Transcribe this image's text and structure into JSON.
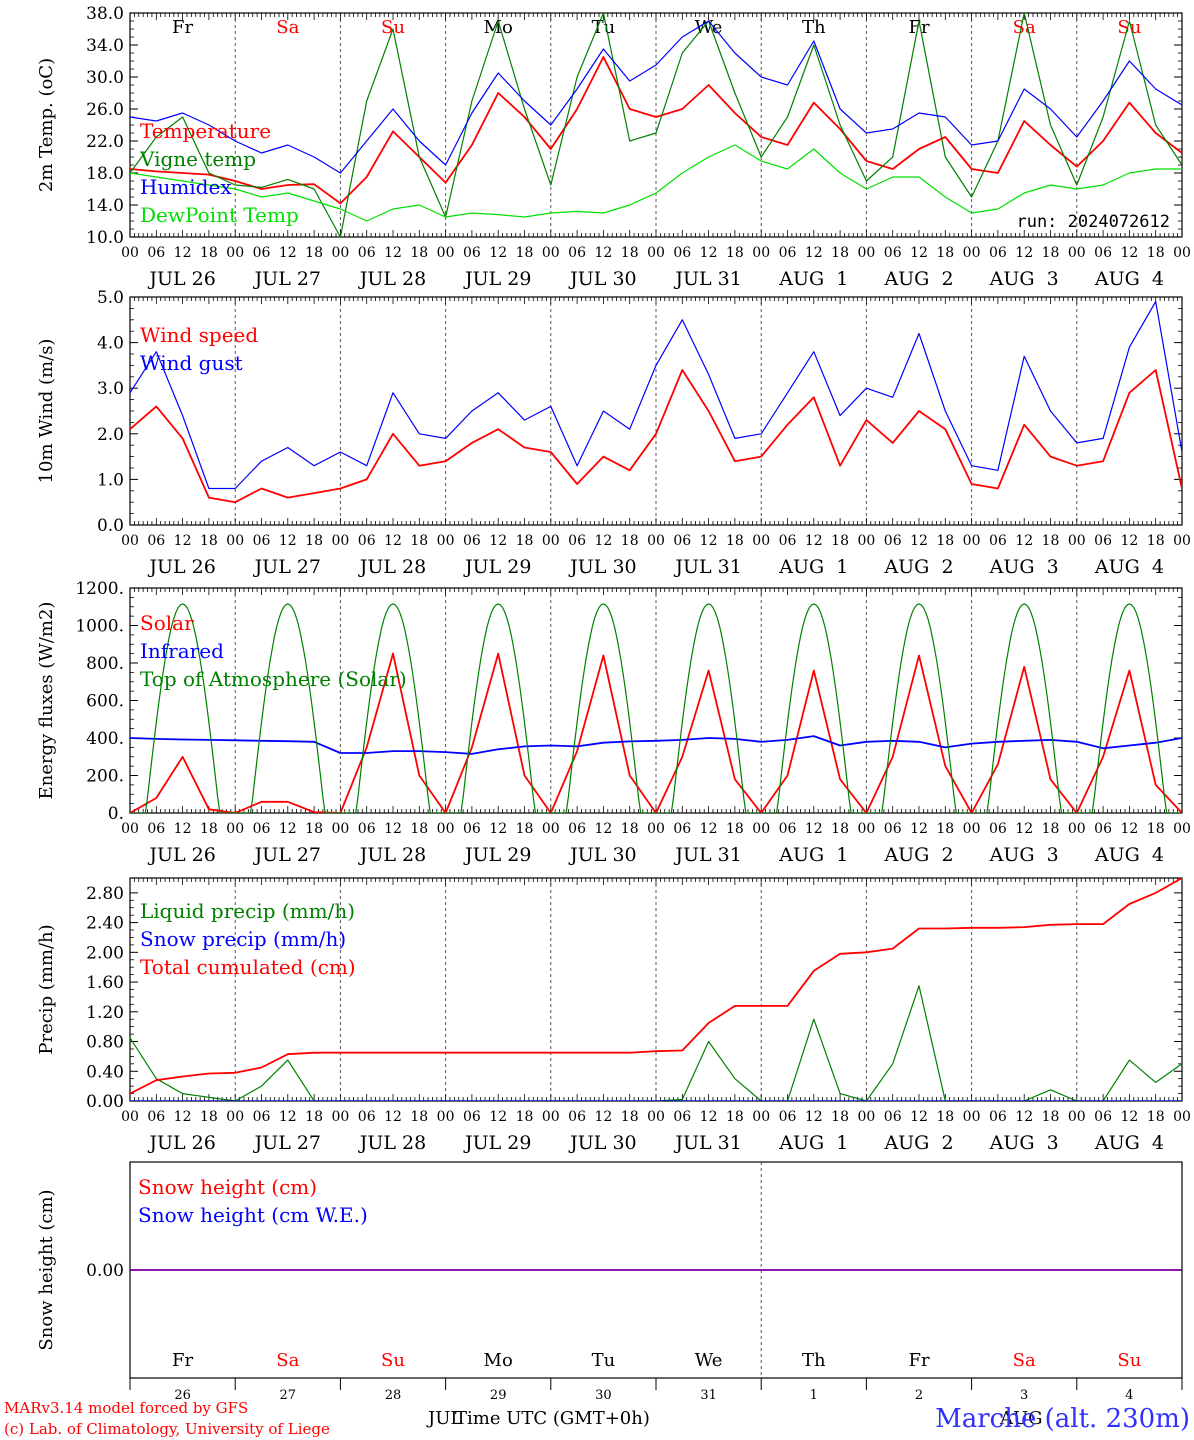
{
  "colors": {
    "red": "#ff0000",
    "green": "#008000",
    "blue": "#0000ff",
    "lime": "#00e000",
    "purple": "#8000a0",
    "axis": "#000000",
    "grid": "#555555"
  },
  "days": [
    {
      "dow": "Fr",
      "weekend": false,
      "month_label": "JUL 26",
      "day_num": "26"
    },
    {
      "dow": "Sa",
      "weekend": true,
      "month_label": "JUL 27",
      "day_num": "27"
    },
    {
      "dow": "Su",
      "weekend": true,
      "month_label": "JUL 28",
      "day_num": "28"
    },
    {
      "dow": "Mo",
      "weekend": false,
      "month_label": "JUL 29",
      "day_num": "29"
    },
    {
      "dow": "Tu",
      "weekend": false,
      "month_label": "JUL 30",
      "day_num": "30"
    },
    {
      "dow": "We",
      "weekend": false,
      "month_label": "JUL 31",
      "day_num": "31"
    },
    {
      "dow": "Th",
      "weekend": false,
      "month_label": "AUG  1",
      "day_num": "1"
    },
    {
      "dow": "Fr",
      "weekend": false,
      "month_label": "AUG  2",
      "day_num": "2"
    },
    {
      "dow": "Sa",
      "weekend": true,
      "month_label": "AUG  3",
      "day_num": "3"
    },
    {
      "dow": "Su",
      "weekend": true,
      "month_label": "AUG  4",
      "day_num": "4"
    }
  ],
  "hour_ticks": [
    "00",
    "06",
    "12",
    "18"
  ],
  "hour_tick_end": "00",
  "run_label": "run: 2024072612",
  "footer": {
    "credit_line1": "MARv3.14 model forced by GFS",
    "credit_line2": "(c) Lab. of Climatology, University of Liege",
    "month_left": "JUL",
    "xlabel": "Time UTC (GMT+0h)",
    "month_right": "AUG",
    "station": "Marche (alt. 230m)"
  },
  "chart_data": [
    {
      "type": "line",
      "panel": "temperature",
      "ylabel": "2m Temp. (oC)",
      "ylim": [
        10,
        38
      ],
      "yticks": [
        10,
        14,
        18,
        22,
        26,
        30,
        34,
        38
      ],
      "ytick_labels": [
        "10.0",
        "14.0",
        "18.0",
        "22.0",
        "26.0",
        "30.0",
        "34.0",
        "38.0"
      ],
      "x_hours": [
        0,
        6,
        12,
        18,
        24,
        30,
        36,
        42,
        48,
        54,
        60,
        66,
        72,
        78,
        84,
        90,
        96,
        102,
        108,
        114,
        120,
        126,
        132,
        138,
        144,
        150,
        156,
        162,
        168,
        174,
        180,
        186,
        192,
        198,
        204,
        210,
        216,
        222,
        228,
        234,
        240
      ],
      "series": [
        {
          "name": "Temperature",
          "color": "red",
          "values": [
            18.5,
            18.2,
            18.0,
            17.8,
            17.0,
            16.0,
            16.5,
            16.6,
            14.2,
            17.5,
            23.2,
            20.0,
            16.8,
            21.5,
            28.0,
            25.0,
            21.0,
            26.0,
            32.5,
            26.0,
            25.0,
            26.0,
            29.0,
            25.5,
            22.5,
            21.5,
            26.8,
            23.5,
            19.5,
            18.5,
            21.0,
            22.5,
            18.5,
            18.0,
            24.5,
            21.5,
            18.8,
            22.0,
            26.8,
            23.0,
            20.5
          ]
        },
        {
          "name": "Vigne temp",
          "color": "green",
          "values": [
            18.0,
            22.5,
            25.0,
            18.0,
            16.5,
            16.2,
            17.2,
            16.0,
            10.0,
            27.0,
            36.0,
            20.0,
            12.5,
            27.0,
            37.0,
            26.0,
            16.5,
            30.0,
            38.0,
            22.0,
            23.0,
            33.0,
            37.0,
            28.0,
            20.0,
            25.0,
            34.0,
            24.0,
            17.0,
            20.0,
            37.0,
            20.0,
            15.0,
            22.0,
            38.0,
            24.0,
            16.5,
            25.0,
            37.0,
            24.0,
            19.0
          ]
        },
        {
          "name": "Humidex",
          "color": "blue",
          "values": [
            25.0,
            24.5,
            25.5,
            24.0,
            22.0,
            20.5,
            21.5,
            20.0,
            18.0,
            22.0,
            26.0,
            22.0,
            19.0,
            25.5,
            30.5,
            27.0,
            24.0,
            28.5,
            33.5,
            29.5,
            31.5,
            35.0,
            37.0,
            33.0,
            30.0,
            29.0,
            34.5,
            26.0,
            23.0,
            23.5,
            25.5,
            25.0,
            21.5,
            22.0,
            28.5,
            26.0,
            22.5,
            27.0,
            32.0,
            28.5,
            26.5
          ]
        },
        {
          "name": "DewPoint Temp",
          "color": "lime",
          "values": [
            18.0,
            17.5,
            17.0,
            16.5,
            16.0,
            15.0,
            15.5,
            14.5,
            13.5,
            12.0,
            13.5,
            14.0,
            12.5,
            13.0,
            12.8,
            12.5,
            13.0,
            13.2,
            13.0,
            14.0,
            15.5,
            18.0,
            20.0,
            21.5,
            19.5,
            18.5,
            21.0,
            18.0,
            16.0,
            17.5,
            17.5,
            15.0,
            13.0,
            13.5,
            15.5,
            16.5,
            16.0,
            16.5,
            18.0,
            18.5,
            18.5
          ]
        }
      ]
    },
    {
      "type": "line",
      "panel": "wind",
      "ylabel": "10m Wind (m/s)",
      "ylim": [
        0,
        5
      ],
      "yticks": [
        0,
        1,
        2,
        3,
        4,
        5
      ],
      "ytick_labels": [
        "0.0",
        "1.0",
        "2.0",
        "3.0",
        "4.0",
        "5.0"
      ],
      "x_hours": [
        0,
        6,
        12,
        18,
        24,
        30,
        36,
        42,
        48,
        54,
        60,
        66,
        72,
        78,
        84,
        90,
        96,
        102,
        108,
        114,
        120,
        126,
        132,
        138,
        144,
        150,
        156,
        162,
        168,
        174,
        180,
        186,
        192,
        198,
        204,
        210,
        216,
        222,
        228,
        234,
        240
      ],
      "series": [
        {
          "name": "Wind speed",
          "color": "red",
          "values": [
            2.1,
            2.6,
            1.9,
            0.6,
            0.5,
            0.8,
            0.6,
            0.7,
            0.8,
            1.0,
            2.0,
            1.3,
            1.4,
            1.8,
            2.1,
            1.7,
            1.6,
            0.9,
            1.5,
            1.2,
            2.0,
            3.4,
            2.5,
            1.4,
            1.5,
            2.2,
            2.8,
            1.3,
            2.3,
            1.8,
            2.5,
            2.1,
            0.9,
            0.8,
            2.2,
            1.5,
            1.3,
            1.4,
            2.9,
            3.4,
            0.8
          ]
        },
        {
          "name": "Wind gust",
          "color": "blue",
          "values": [
            2.9,
            3.8,
            2.4,
            0.8,
            0.8,
            1.4,
            1.7,
            1.3,
            1.6,
            1.3,
            2.9,
            2.0,
            1.9,
            2.5,
            2.9,
            2.3,
            2.6,
            1.3,
            2.5,
            2.1,
            3.5,
            4.5,
            3.3,
            1.9,
            2.0,
            2.9,
            3.8,
            2.4,
            3.0,
            2.8,
            4.2,
            2.5,
            1.3,
            1.2,
            3.7,
            2.5,
            1.8,
            1.9,
            3.9,
            4.9,
            1.6
          ]
        }
      ]
    },
    {
      "type": "line",
      "panel": "energy",
      "ylabel": "Energy fluxes (W/m2)",
      "ylim": [
        0,
        1200
      ],
      "yticks": [
        0,
        200,
        400,
        600,
        800,
        1000,
        1200
      ],
      "ytick_labels": [
        "0.",
        "200.",
        "400.",
        "600.",
        "800.",
        "1000.",
        "1200."
      ],
      "x_hours": [
        0,
        6,
        12,
        18,
        24,
        30,
        36,
        42,
        48,
        54,
        60,
        66,
        72,
        78,
        84,
        90,
        96,
        102,
        108,
        114,
        120,
        126,
        132,
        138,
        144,
        150,
        156,
        162,
        168,
        174,
        180,
        186,
        192,
        198,
        204,
        210,
        216,
        222,
        228,
        234,
        240
      ],
      "series": [
        {
          "name": "Solar",
          "color": "red",
          "values": [
            0,
            80,
            300,
            20,
            0,
            60,
            60,
            5,
            0,
            350,
            850,
            200,
            0,
            350,
            850,
            200,
            0,
            330,
            840,
            200,
            0,
            300,
            760,
            180,
            0,
            200,
            760,
            180,
            0,
            300,
            840,
            250,
            0,
            260,
            780,
            180,
            0,
            300,
            760,
            150,
            0
          ]
        },
        {
          "name": "Infrared",
          "color": "blue",
          "values": [
            400,
            395,
            392,
            390,
            388,
            385,
            383,
            380,
            320,
            320,
            330,
            330,
            325,
            315,
            340,
            355,
            360,
            355,
            375,
            382,
            385,
            390,
            400,
            395,
            380,
            390,
            410,
            360,
            380,
            385,
            380,
            350,
            370,
            380,
            385,
            390,
            380,
            345,
            360,
            375,
            400
          ]
        },
        {
          "name": "Top of Atmosphere (Solar)",
          "color": "green",
          "diurnal_peak": 1115,
          "values": [
            0,
            630,
            1115,
            630,
            0,
            630,
            1115,
            630,
            0,
            630,
            1115,
            630,
            0,
            630,
            1115,
            630,
            0,
            630,
            1115,
            630,
            0,
            630,
            1115,
            630,
            0,
            630,
            1115,
            630,
            0,
            630,
            1115,
            630,
            0,
            630,
            1115,
            630,
            0,
            630,
            1115,
            630,
            0
          ]
        }
      ]
    },
    {
      "type": "line",
      "panel": "precip",
      "ylabel": "Precip (mm/h)",
      "ylim": [
        0,
        3.0
      ],
      "yticks": [
        0,
        0.4,
        0.8,
        1.2,
        1.6,
        2.0,
        2.4,
        2.8
      ],
      "ytick_labels": [
        "0.00",
        "0.40",
        "0.80",
        "1.20",
        "1.60",
        "2.00",
        "2.40",
        "2.80"
      ],
      "x_hours": [
        0,
        6,
        12,
        18,
        24,
        30,
        36,
        42,
        48,
        54,
        60,
        66,
        72,
        78,
        84,
        90,
        96,
        102,
        108,
        114,
        120,
        126,
        132,
        138,
        144,
        150,
        156,
        162,
        168,
        174,
        180,
        186,
        192,
        198,
        204,
        210,
        216,
        222,
        228,
        234,
        240
      ],
      "series": [
        {
          "name": "Liquid precip (mm/h)",
          "color": "green",
          "values": [
            0.85,
            0.3,
            0.1,
            0.05,
            0.0,
            0.2,
            0.55,
            0.0,
            0.0,
            0.0,
            0.0,
            0.0,
            0.0,
            0.0,
            0.0,
            0.0,
            0.0,
            0.0,
            0.0,
            0.0,
            0.0,
            0.02,
            0.8,
            0.3,
            0.0,
            0.0,
            1.1,
            0.1,
            0.0,
            0.5,
            1.55,
            0.0,
            0.0,
            0.0,
            0.0,
            0.15,
            0.0,
            0.0,
            0.55,
            0.25,
            0.5
          ]
        },
        {
          "name": "Snow precip (mm/h)",
          "color": "blue",
          "values": [
            0,
            0,
            0,
            0,
            0,
            0,
            0,
            0,
            0,
            0,
            0,
            0,
            0,
            0,
            0,
            0,
            0,
            0,
            0,
            0,
            0,
            0,
            0,
            0,
            0,
            0,
            0,
            0,
            0,
            0,
            0,
            0,
            0,
            0,
            0,
            0,
            0,
            0,
            0,
            0,
            0
          ]
        },
        {
          "name": "Total cumulated (cm)",
          "color": "red",
          "values": [
            0.1,
            0.28,
            0.33,
            0.37,
            0.38,
            0.45,
            0.63,
            0.65,
            0.65,
            0.65,
            0.65,
            0.65,
            0.65,
            0.65,
            0.65,
            0.65,
            0.65,
            0.65,
            0.65,
            0.65,
            0.67,
            0.68,
            1.05,
            1.28,
            1.28,
            1.28,
            1.75,
            1.98,
            2.0,
            2.05,
            2.32,
            2.32,
            2.33,
            2.33,
            2.34,
            2.37,
            2.38,
            2.38,
            2.65,
            2.8,
            3.0
          ]
        }
      ]
    },
    {
      "type": "line",
      "panel": "snow",
      "ylabel": "Snow height (cm)",
      "ylim": [
        -1,
        1
      ],
      "yticks": [
        0
      ],
      "ytick_labels": [
        "0.00"
      ],
      "x_hours": [
        0,
        240
      ],
      "series": [
        {
          "name": "Snow height (cm)",
          "color": "red",
          "values": [
            0,
            0
          ]
        },
        {
          "name": "Snow height (cm W.E.)",
          "color": "blue",
          "values": [
            0,
            0
          ]
        }
      ]
    }
  ]
}
